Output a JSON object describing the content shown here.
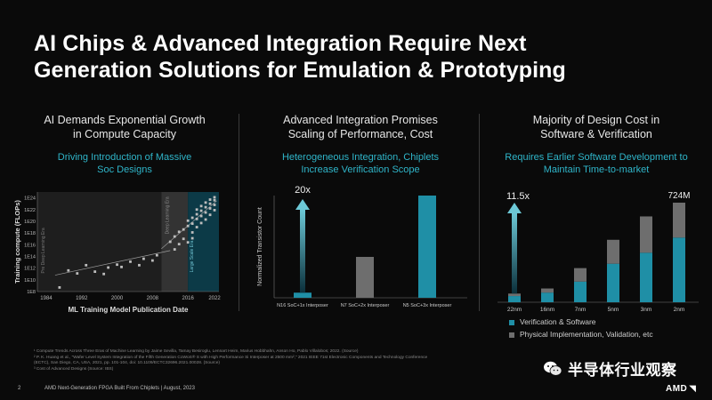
{
  "slide": {
    "title_line1": "AI Chips & Advanced Integration Require Next",
    "title_line2": "Generation Solutions for Emulation & Prototyping",
    "page_number": "2",
    "footer_text": "AMD Next-Generation FPGA Built From Chiplets  |  August, 2023",
    "brand": "AMD",
    "watermark": "半导体行业观察"
  },
  "footnotes": [
    "¹ Compute Trends Across Three Eras of Machine Learning by Jaime Sevilla, Tamay Besiroglu, Lennart Heim, Marius Hobbhahn, Anson Ho, Pablo Villalobos; 2022. (Source)",
    "² P. K. Huang et al., \"Wafer Level System Integration of the Fifth Generation CoWoS® S with High Performance Si Interposer at 2500 mm²,\" 2021 IEEE 71st Electronic Components and Technology Conference",
    "(ECTC), San Diego, CA, USA, 2021, pp. 101-104, doi: 10.1109/ECTC32696.2021.00028. (Source)",
    "³ Cost of Advanced Designs (Source: IBS)"
  ],
  "panels": {
    "left": {
      "heading_line1": "AI Demands Exponential Growth",
      "heading_line2": "in Compute Capacity",
      "sub_line1": "Driving Introduction of Massive",
      "sub_line2": "Soc Designs"
    },
    "middle": {
      "heading_line1": "Advanced Integration Promises",
      "heading_line2": "Scaling of Performance, Cost",
      "sub_line1": "Heterogeneous Integration, Chiplets",
      "sub_line2": "Increase Verification Scope"
    },
    "right": {
      "heading_line1": "Majority of Design Cost in",
      "heading_line2": "Software & Verification",
      "sub_line1": "Requires Earlier Software Development to",
      "sub_line2": "Maintain Time-to-market"
    }
  },
  "chart_data": [
    {
      "type": "scatter",
      "title": "",
      "xlabel": "ML Training Model Publication Date",
      "ylabel": "Training compute (FLOPs)",
      "x_ticks": [
        "1984",
        "1992",
        "2000",
        "2008",
        "2016",
        "2022"
      ],
      "y_ticks": [
        "1E8",
        "1E10",
        "1E12",
        "1E14",
        "1E16",
        "1E18",
        "1E20",
        "1E22",
        "1E24"
      ],
      "xlim": [
        1982,
        2023
      ],
      "ylim": [
        8,
        25
      ],
      "era_labels": [
        "Pre Deep Learning Era",
        "Deep Learning Era",
        "Large Scale Era"
      ],
      "colors": {
        "points": "#bdbdbd",
        "pre_era_bg": "#1e1e1e",
        "dl_era_bg": "#333333",
        "ls_era_bg": "#0c3a47",
        "trend": "#9a9a9a"
      },
      "points": [
        [
          1987,
          8.7
        ],
        [
          1989,
          11.6
        ],
        [
          1991,
          11.1
        ],
        [
          1993,
          12.5
        ],
        [
          1995,
          11.4
        ],
        [
          1997,
          11.0
        ],
        [
          1998,
          12.1
        ],
        [
          2000,
          12.6
        ],
        [
          2001,
          12.2
        ],
        [
          2003,
          13.1
        ],
        [
          2005,
          12.5
        ],
        [
          2006,
          13.6
        ],
        [
          2008,
          13.3
        ],
        [
          2009,
          14.2
        ],
        [
          2012,
          16.5
        ],
        [
          2013,
          15.2
        ],
        [
          2013,
          17.4
        ],
        [
          2014,
          16.1
        ],
        [
          2014,
          18.2
        ],
        [
          2015,
          17.0
        ],
        [
          2015,
          18.6
        ],
        [
          2016,
          16.4
        ],
        [
          2016,
          19.2
        ],
        [
          2016,
          20.1
        ],
        [
          2017,
          18.1
        ],
        [
          2017,
          19.6
        ],
        [
          2017,
          20.6
        ],
        [
          2017,
          17.1
        ],
        [
          2018,
          19.0
        ],
        [
          2018,
          20.4
        ],
        [
          2018,
          21.2
        ],
        [
          2018,
          22.0
        ],
        [
          2019,
          19.7
        ],
        [
          2019,
          20.9
        ],
        [
          2019,
          21.8
        ],
        [
          2019,
          22.6
        ],
        [
          2020,
          20.3
        ],
        [
          2020,
          21.5
        ],
        [
          2020,
          22.4
        ],
        [
          2020,
          23.2
        ],
        [
          2021,
          21.1
        ],
        [
          2021,
          22.2
        ],
        [
          2021,
          23.0
        ],
        [
          2021,
          23.7
        ],
        [
          2022,
          21.9
        ],
        [
          2022,
          22.8
        ],
        [
          2022,
          23.6
        ],
        [
          2022,
          24.1
        ]
      ]
    },
    {
      "type": "bar",
      "title": "",
      "ylabel": "Normalized Transistor Count",
      "categories": [
        "N16 SoC+1x Interposer",
        "N7 SoC+2x Interposer",
        "N5 SoC+3x Interposer"
      ],
      "values": [
        1,
        8,
        20
      ],
      "ylim": [
        0,
        20
      ],
      "annotation": "20x",
      "colors": [
        "#1f8fa6",
        "#6e6e6e",
        "#1f8fa6"
      ]
    },
    {
      "type": "bar",
      "title": "",
      "categories": [
        "22nm",
        "16nm",
        "7nm",
        "5nm",
        "3nm",
        "2nm"
      ],
      "series": [
        {
          "name": "Verification & Software",
          "values": [
            45,
            70,
            150,
            280,
            360,
            470
          ]
        },
        {
          "name": "Physical Implementation, Validation, etc",
          "values": [
            18,
            30,
            98,
            174,
            264,
            254
          ]
        }
      ],
      "ylim": [
        0,
        724
      ],
      "annotation": "11.5x",
      "top_label": "724M",
      "colors": {
        "Verification & Software": "#1f8fa6",
        "Physical Implementation, Validation, etc": "#6e6e6e"
      }
    }
  ]
}
